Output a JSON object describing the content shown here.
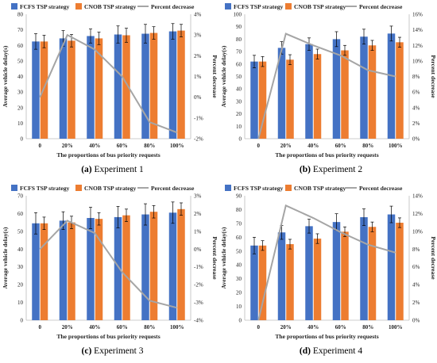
{
  "legend": {
    "fcfs": "FCFS TSP strategy",
    "cnob": "CNOB TSP strategy",
    "pct": "Percent decrease"
  },
  "colors": {
    "fcfs": "#4472C4",
    "cnob": "#ED7D31",
    "line": "#A5A5A5",
    "text": "#222222"
  },
  "chart_data": [
    {
      "type": "bar",
      "caption_prefix": "(a)",
      "caption_text": "Experiment 1",
      "categories": [
        "0",
        "20%",
        "40%",
        "60%",
        "80%",
        "100%"
      ],
      "xlabel": "The proportions of bus priority requests",
      "ylabel": "Average vehicle delay(s)",
      "y2label": "Percent decrease",
      "ylim": [
        0,
        80
      ],
      "yticks": [
        0,
        10,
        20,
        30,
        40,
        50,
        60,
        70,
        80
      ],
      "ytick_labels": [
        "0",
        "10",
        "20",
        "30",
        "40",
        "50",
        "60",
        "70",
        "80"
      ],
      "y2lim": [
        -2,
        4
      ],
      "y2ticks": [
        -2,
        -1,
        0,
        1,
        2,
        3,
        4
      ],
      "y2tick_labels": [
        "-2%",
        "-1%",
        "0%",
        "1%",
        "2%",
        "3%",
        "4%"
      ],
      "series": [
        {
          "name": "FCFS TSP strategy",
          "values": [
            62.5,
            64.5,
            66.0,
            67.0,
            67.5,
            69.0
          ],
          "errors": [
            5,
            5,
            4.5,
            5.5,
            6,
            5
          ]
        },
        {
          "name": "CNOB TSP strategy",
          "values": [
            62.5,
            63.0,
            64.5,
            66.5,
            68.0,
            69.5
          ],
          "errors": [
            4,
            4,
            4,
            4.5,
            4,
            4
          ]
        }
      ],
      "line": {
        "name": "Percent decrease",
        "values": [
          0.0,
          3.0,
          2.3,
          1.0,
          -1.2,
          -1.7
        ]
      }
    },
    {
      "type": "bar",
      "caption_prefix": "(b)",
      "caption_text": "Experiment 2",
      "categories": [
        "0",
        "20%",
        "40%",
        "60%",
        "80%",
        "100%"
      ],
      "xlabel": "The proportions of bus priority requests",
      "ylabel": "Average vehicle delay(s)",
      "y2label": "Percent decrease",
      "ylim": [
        0,
        100
      ],
      "yticks": [
        0,
        10,
        20,
        30,
        40,
        50,
        60,
        70,
        80,
        90,
        100
      ],
      "ytick_labels": [
        "0",
        "10",
        "20",
        "30",
        "40",
        "50",
        "60",
        "70",
        "80",
        "90",
        "100"
      ],
      "y2lim": [
        0,
        16
      ],
      "y2ticks": [
        0,
        2,
        4,
        6,
        8,
        10,
        12,
        14,
        16
      ],
      "y2tick_labels": [
        "0%",
        "2%",
        "4%",
        "6%",
        "8%",
        "10%",
        "12%",
        "14%",
        "16%"
      ],
      "series": [
        {
          "name": "FCFS TSP strategy",
          "values": [
            62,
            73,
            76,
            80,
            82,
            84.5
          ],
          "errors": [
            5,
            5,
            5,
            6,
            6,
            6
          ]
        },
        {
          "name": "CNOB TSP strategy",
          "values": [
            62,
            63.5,
            68,
            71,
            75,
            77.5
          ],
          "errors": [
            4,
            4,
            4,
            4,
            4,
            4
          ]
        }
      ],
      "line": {
        "name": "Percent decrease",
        "values": [
          0.0,
          13.5,
          12.0,
          10.7,
          8.8,
          8.0
        ]
      }
    },
    {
      "type": "bar",
      "caption_prefix": "(c)",
      "caption_text": "Experiment 3",
      "categories": [
        "0",
        "20%",
        "40%",
        "60%",
        "80%",
        "100%"
      ],
      "xlabel": "The proportions of bus priority requests",
      "ylabel": "Average vehicle delay(s)",
      "y2label": "Percent decrease",
      "ylim": [
        0,
        70
      ],
      "yticks": [
        0,
        10,
        20,
        30,
        40,
        50,
        60,
        70
      ],
      "ytick_labels": [
        "0",
        "10",
        "20",
        "30",
        "40",
        "50",
        "60",
        "70"
      ],
      "y2lim": [
        -4,
        3
      ],
      "y2ticks": [
        -4,
        -3,
        -2,
        -1,
        0,
        1,
        2,
        3
      ],
      "y2tick_labels": [
        "-4%",
        "-3%",
        "-2%",
        "-1%",
        "0%",
        "1%",
        "2%",
        "3%"
      ],
      "series": [
        {
          "name": "FCFS TSP strategy",
          "values": [
            54.5,
            56.0,
            57.5,
            58.0,
            59.5,
            60.5
          ],
          "errors": [
            6,
            5,
            6,
            6,
            6,
            6
          ]
        },
        {
          "name": "CNOB TSP strategy",
          "values": [
            54.5,
            55.0,
            57.0,
            59.0,
            61.0,
            62.5
          ],
          "errors": [
            3.5,
            3.5,
            3.5,
            3.5,
            3.5,
            3.5
          ]
        }
      ],
      "line": {
        "name": "Percent decrease",
        "values": [
          0.0,
          1.6,
          0.9,
          -1.3,
          -2.9,
          -3.3
        ]
      }
    },
    {
      "type": "bar",
      "caption_prefix": "(d)",
      "caption_text": "Experiment 4",
      "categories": [
        "0",
        "20%",
        "40%",
        "60%",
        "80%",
        "100%"
      ],
      "xlabel": "The proportions of bus priority requests",
      "ylabel": "Average vehicle delay(s)",
      "y2label": "Percent decrease",
      "ylim": [
        0,
        90
      ],
      "yticks": [
        0,
        10,
        20,
        30,
        40,
        50,
        60,
        70,
        80,
        90
      ],
      "ytick_labels": [
        "0",
        "10",
        "20",
        "30",
        "40",
        "50",
        "60",
        "70",
        "80",
        "90"
      ],
      "y2lim": [
        0,
        14
      ],
      "y2ticks": [
        0,
        2,
        4,
        6,
        8,
        10,
        12,
        14
      ],
      "y2tick_labels": [
        "0%",
        "2%",
        "4%",
        "6%",
        "8%",
        "10%",
        "12%",
        "14%"
      ],
      "series": [
        {
          "name": "FCFS TSP strategy",
          "values": [
            54,
            63.5,
            68,
            71,
            74.5,
            76.5
          ],
          "errors": [
            6,
            5,
            5,
            6,
            6,
            6
          ]
        },
        {
          "name": "CNOB TSP strategy",
          "values": [
            54,
            55,
            59,
            64,
            67.5,
            70.5
          ],
          "errors": [
            3.5,
            3.5,
            3.5,
            3.5,
            3.5,
            3.5
          ]
        }
      ],
      "line": {
        "name": "Percent decrease",
        "values": [
          0.0,
          12.9,
          11.5,
          9.9,
          8.5,
          7.6
        ]
      }
    }
  ]
}
